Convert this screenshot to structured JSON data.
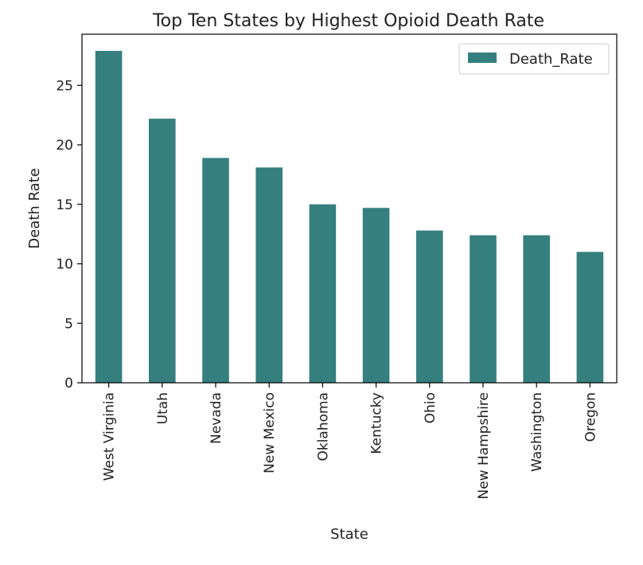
{
  "chart_data": {
    "type": "bar",
    "title": "Top Ten States by Highest Opioid Death Rate",
    "xlabel": "State",
    "ylabel": "Death Rate",
    "categories": [
      "West Virginia",
      "Utah",
      "Nevada",
      "New Mexico",
      "Oklahoma",
      "Kentucky",
      "Ohio",
      "New Hampshire",
      "Washington",
      "Oregon"
    ],
    "series": [
      {
        "name": "Death_Rate",
        "values": [
          27.9,
          22.2,
          18.9,
          18.1,
          15.0,
          14.7,
          12.8,
          12.4,
          12.4,
          11.0
        ],
        "color": "#357f7f"
      }
    ],
    "ylim": [
      0,
      29.3
    ],
    "yticks": [
      0,
      5,
      10,
      15,
      20,
      25
    ],
    "grid": false,
    "legend": "top-right"
  }
}
